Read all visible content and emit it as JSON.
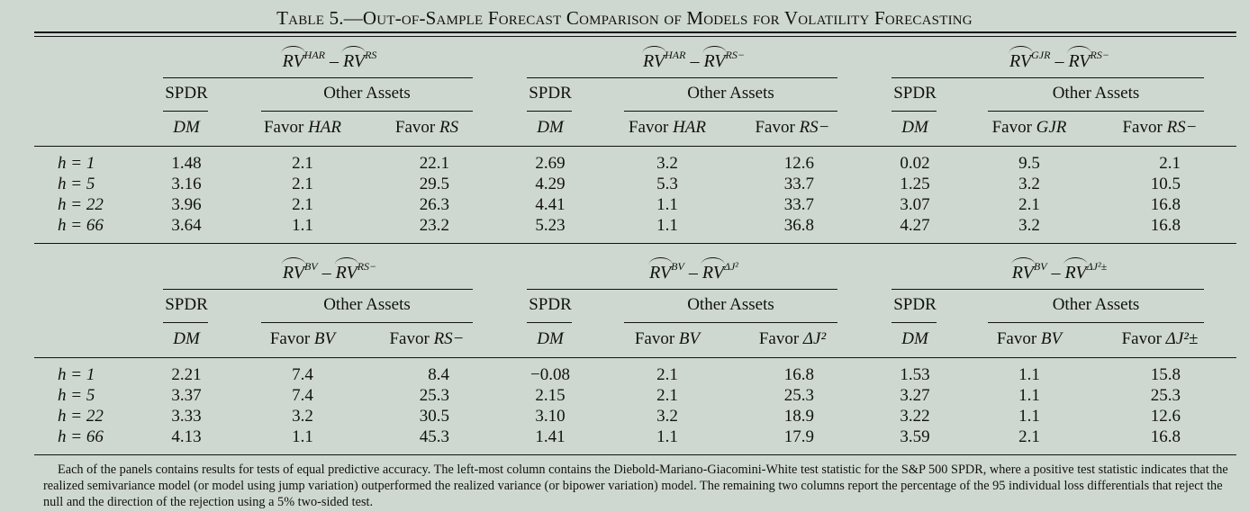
{
  "table": {
    "label": "Table 5.",
    "title": "—Out-of-Sample Forecast Comparison of Models for Volatility Forecasting",
    "column_groups": {
      "spdr": "SPDR",
      "other": "Other Assets",
      "dm": "DM",
      "favor": "Favor"
    },
    "panels": [
      {
        "left": "RV",
        "left_sup": "HAR",
        "right": "RV",
        "right_sup": "RS",
        "favor_a": "HAR",
        "favor_b": "RS",
        "rows": [
          {
            "h": "h = 1",
            "dm": "1.48",
            "a": "2.1",
            "b": "22.1"
          },
          {
            "h": "h = 5",
            "dm": "3.16",
            "a": "2.1",
            "b": "29.5"
          },
          {
            "h": "h = 22",
            "dm": "3.96",
            "a": "2.1",
            "b": "26.3"
          },
          {
            "h": "h = 66",
            "dm": "3.64",
            "a": "1.1",
            "b": "23.2"
          }
        ]
      },
      {
        "left": "RV",
        "left_sup": "HAR",
        "right": "RV",
        "right_sup": "RS−",
        "favor_a": "HAR",
        "favor_b": "RS−",
        "rows": [
          {
            "dm": "2.69",
            "a": "3.2",
            "b": "12.6"
          },
          {
            "dm": "4.29",
            "a": "5.3",
            "b": "33.7"
          },
          {
            "dm": "4.41",
            "a": "1.1",
            "b": "33.7"
          },
          {
            "dm": "5.23",
            "a": "1.1",
            "b": "36.8"
          }
        ]
      },
      {
        "left": "RV",
        "left_sup": "GJR",
        "right": "RV",
        "right_sup": "RS−",
        "favor_a": "GJR",
        "favor_b": "RS−",
        "rows": [
          {
            "dm": "0.02",
            "a": "9.5",
            "b": "2.1"
          },
          {
            "dm": "1.25",
            "a": "3.2",
            "b": "10.5"
          },
          {
            "dm": "3.07",
            "a": "2.1",
            "b": "16.8"
          },
          {
            "dm": "4.27",
            "a": "3.2",
            "b": "16.8"
          }
        ]
      },
      {
        "left": "RV",
        "left_sup": "BV",
        "right": "RV",
        "right_sup": "RS−",
        "favor_a": "BV",
        "favor_b": "RS−",
        "rows": [
          {
            "h": "h = 1",
            "dm": "2.21",
            "a": "7.4",
            "b": "8.4"
          },
          {
            "h": "h = 5",
            "dm": "3.37",
            "a": "7.4",
            "b": "25.3"
          },
          {
            "h": "h = 22",
            "dm": "3.33",
            "a": "3.2",
            "b": "30.5"
          },
          {
            "h": "h = 66",
            "dm": "4.13",
            "a": "1.1",
            "b": "45.3"
          }
        ]
      },
      {
        "left": "RV",
        "left_sup": "BV",
        "right": "RV",
        "right_sup": "ΔJ²",
        "favor_a": "BV",
        "favor_b": "ΔJ²",
        "rows": [
          {
            "dm": "−0.08",
            "a": "2.1",
            "b": "16.8"
          },
          {
            "dm": "2.15",
            "a": "2.1",
            "b": "25.3"
          },
          {
            "dm": "3.10",
            "a": "3.2",
            "b": "18.9"
          },
          {
            "dm": "1.41",
            "a": "1.1",
            "b": "17.9"
          }
        ]
      },
      {
        "left": "RV",
        "left_sup": "BV",
        "right": "RV",
        "right_sup": "ΔJ²±",
        "favor_a": "BV",
        "favor_b": "ΔJ²±",
        "rows": [
          {
            "dm": "1.53",
            "a": "1.1",
            "b": "15.8"
          },
          {
            "dm": "3.27",
            "a": "1.1",
            "b": "25.3"
          },
          {
            "dm": "3.22",
            "a": "1.1",
            "b": "12.6"
          },
          {
            "dm": "3.59",
            "a": "2.1",
            "b": "16.8"
          }
        ]
      }
    ],
    "note": "Each of the panels contains results for tests of equal predictive accuracy. The left-most column contains the Diebold-Mariano-Giacomini-White test statistic for the S&P 500 SPDR, where a positive test statistic indicates that the realized semivariance model (or model using jump variation) outperformed the realized variance (or bipower variation) model. The remaining two columns report the percentage of the 95 individual loss differentials that reject the null and the direction of the rejection using a 5% two-sided test."
  }
}
